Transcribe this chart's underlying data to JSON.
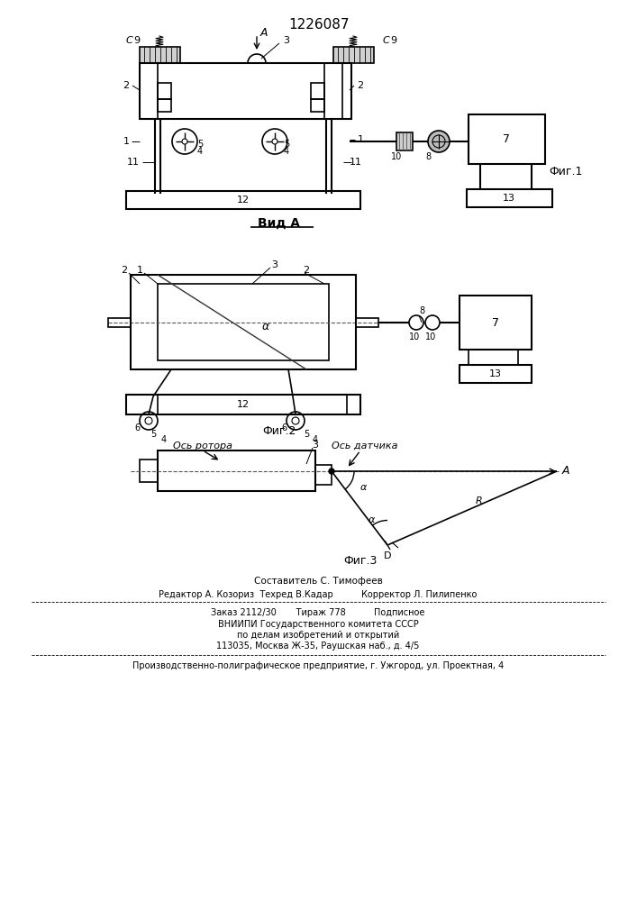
{
  "title": "1226087",
  "fig1_label": "Фиг.1",
  "fig2_label": "Фиг.2",
  "fig3_label": "Фиг.3",
  "vid_a_label": "Вид А",
  "footer_composer": "Составитель С. Тимофеев",
  "footer_editor": "Редактор А. Козориз  Техред В.Кадар          Корректор Л. Пилипенко",
  "footer_order": "Заказ 2112/30       Тираж 778          Подписное",
  "footer_vnipi": "ВНИИПИ Государственного комитета СССР",
  "footer_affairs": "по делам изобретений и открытий",
  "footer_address": "113035, Москва Ж-35, Раушская наб., д. 4/5",
  "footer_plant": "Производственно-полиграфическое предприятие, г. Ужгород, ул. Проектная, 4",
  "bg_color": "#ffffff"
}
